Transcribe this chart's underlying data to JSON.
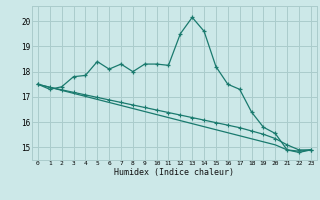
{
  "xlabel": "Humidex (Indice chaleur)",
  "background_color": "#cce8e8",
  "grid_color": "#aacccc",
  "line_color": "#1a7a6e",
  "x_values": [
    0,
    1,
    2,
    3,
    4,
    5,
    6,
    7,
    8,
    9,
    10,
    11,
    12,
    13,
    14,
    15,
    16,
    17,
    18,
    19,
    20,
    21,
    22,
    23
  ],
  "line1": [
    17.5,
    17.3,
    17.4,
    17.8,
    17.85,
    18.4,
    18.1,
    18.3,
    18.0,
    18.3,
    18.3,
    18.25,
    19.5,
    20.15,
    19.6,
    18.2,
    17.5,
    17.3,
    16.4,
    15.8,
    15.55,
    14.9,
    14.8,
    14.9
  ],
  "line2": [
    17.5,
    17.38,
    17.28,
    17.18,
    17.08,
    16.98,
    16.88,
    16.78,
    16.68,
    16.58,
    16.48,
    16.38,
    16.28,
    16.18,
    16.08,
    15.98,
    15.88,
    15.78,
    15.65,
    15.52,
    15.35,
    15.1,
    14.9,
    14.9
  ],
  "line3": [
    17.5,
    17.38,
    17.26,
    17.14,
    17.02,
    16.9,
    16.78,
    16.66,
    16.54,
    16.42,
    16.3,
    16.18,
    16.06,
    15.94,
    15.82,
    15.7,
    15.58,
    15.46,
    15.34,
    15.22,
    15.1,
    14.9,
    14.85,
    14.9
  ],
  "ylim": [
    14.5,
    20.6
  ],
  "yticks": [
    15,
    16,
    17,
    18,
    19,
    20
  ],
  "xlim": [
    -0.5,
    23.5
  ]
}
